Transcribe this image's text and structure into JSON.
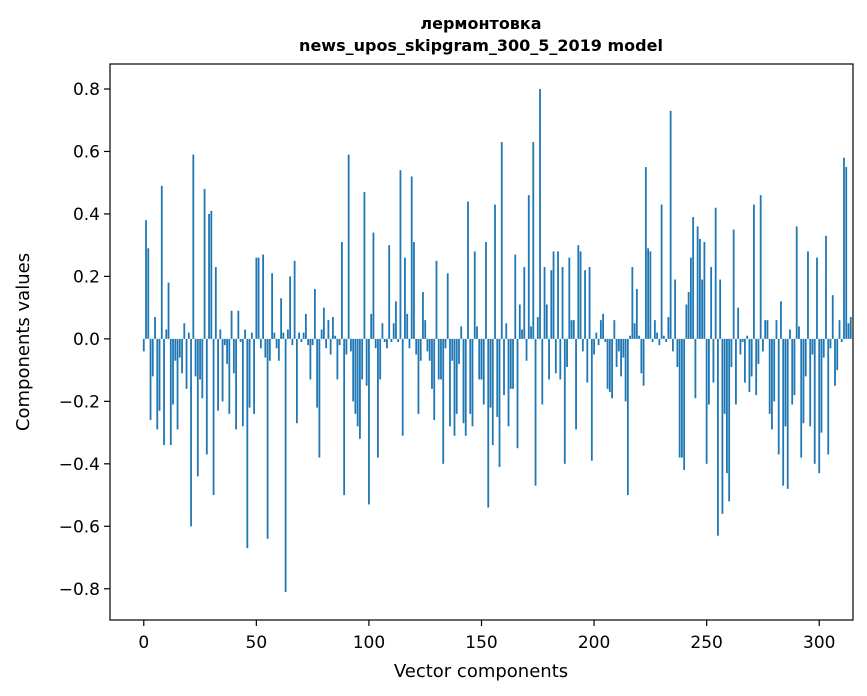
{
  "chart_data": {
    "type": "bar",
    "title": [
      "лермонтовка",
      "news_upos_skipgram_300_5_2019 model"
    ],
    "xlabel": "Vector components",
    "ylabel": "Components values",
    "xlim": [
      -15,
      315
    ],
    "ylim": [
      -0.9,
      0.88
    ],
    "x_ticks": [
      0,
      50,
      100,
      150,
      200,
      250,
      300
    ],
    "x_tick_labels": [
      "0",
      "50",
      "100",
      "150",
      "200",
      "250",
      "300"
    ],
    "y_ticks": [
      -0.8,
      -0.6,
      -0.4,
      -0.2,
      0.0,
      0.2,
      0.4,
      0.6,
      0.8
    ],
    "y_tick_labels": [
      "−0.8",
      "−0.6",
      "−0.4",
      "−0.2",
      "0.0",
      "0.2",
      "0.4",
      "0.6",
      "0.8"
    ],
    "bar_color": "#1f77b4",
    "grid": false,
    "series": [
      {
        "x_start": 0,
        "values": [
          -0.04,
          0.38,
          0.29,
          -0.26,
          -0.12,
          0.07,
          -0.29,
          -0.23,
          0.49,
          -0.34,
          0.03,
          0.18,
          -0.34,
          -0.21,
          -0.07,
          -0.29,
          -0.06,
          -0.11,
          0.05,
          -0.16,
          0.02,
          -0.6,
          0.59,
          -0.12,
          -0.44,
          -0.13,
          -0.19,
          0.48,
          -0.37,
          0.4,
          0.41,
          -0.5,
          0.23,
          -0.23,
          0.03,
          -0.2,
          -0.02,
          -0.08,
          -0.24,
          0.09,
          -0.11,
          -0.29,
          0.09,
          -0.01,
          -0.28,
          0.03,
          -0.67,
          -0.22,
          0.02,
          -0.24,
          0.26,
          0.26,
          -0.03,
          0.27,
          -0.06,
          -0.64,
          -0.07,
          0.21,
          0.02,
          -0.03,
          -0.07,
          0.13,
          0.02,
          -0.81,
          0.03,
          0.2,
          -0.02,
          0.25,
          -0.27,
          0.02,
          -0.01,
          0.02,
          0.08,
          -0.02,
          -0.13,
          -0.02,
          0.16,
          -0.22,
          -0.38,
          0.03,
          0.1,
          -0.03,
          0.06,
          -0.05,
          0.07,
          0.01,
          -0.13,
          -0.02,
          0.31,
          -0.5,
          -0.05,
          0.59,
          -0.04,
          -0.2,
          -0.24,
          -0.28,
          -0.32,
          -0.13,
          0.47,
          -0.15,
          -0.53,
          0.08,
          0.34,
          -0.03,
          -0.38,
          -0.13,
          0.05,
          -0.01,
          -0.03,
          0.3,
          -0.01,
          0.05,
          0.12,
          -0.01,
          0.54,
          -0.31,
          0.26,
          0.08,
          -0.03,
          0.52,
          0.31,
          -0.05,
          -0.24,
          -0.07,
          0.15,
          0.06,
          -0.04,
          -0.07,
          -0.16,
          -0.26,
          0.25,
          -0.13,
          -0.13,
          -0.4,
          -0.03,
          0.21,
          -0.28,
          -0.07,
          -0.31,
          -0.24,
          -0.08,
          0.04,
          -0.27,
          -0.31,
          0.44,
          -0.24,
          -0.28,
          0.28,
          0.04,
          -0.13,
          -0.13,
          -0.21,
          0.31,
          -0.54,
          -0.22,
          -0.34,
          0.43,
          -0.25,
          -0.41,
          0.63,
          -0.18,
          0.05,
          -0.28,
          -0.16,
          -0.16,
          0.27,
          -0.35,
          0.11,
          0.03,
          0.23,
          -0.07,
          0.46,
          0.04,
          0.63,
          -0.47,
          0.07,
          0.8,
          -0.21,
          0.23,
          0.11,
          -0.13,
          0.22,
          0.28,
          -0.11,
          0.28,
          -0.13,
          0.23,
          -0.4,
          -0.09,
          0.26,
          0.06,
          0.06,
          -0.29,
          0.3,
          0.28,
          -0.04,
          0.22,
          -0.14,
          0.23,
          -0.39,
          -0.05,
          0.02,
          -0.02,
          0.06,
          0.08,
          -0.01,
          -0.16,
          -0.17,
          -0.19,
          0.06,
          -0.09,
          -0.04,
          -0.12,
          -0.06,
          -0.2,
          -0.5,
          0.01,
          0.23,
          0.05,
          0.16,
          0.01,
          -0.11,
          -0.15,
          0.55,
          0.29,
          0.28,
          -0.01,
          0.06,
          0.02,
          -0.02,
          0.43,
          0.01,
          -0.01,
          0.07,
          0.73,
          -0.04,
          0.19,
          -0.09,
          -0.38,
          -0.38,
          -0.42,
          0.11,
          0.15,
          0.26,
          0.39,
          -0.19,
          0.36,
          0.32,
          0.19,
          0.31,
          -0.4,
          -0.21,
          0.23,
          -0.14,
          0.42,
          -0.63,
          0.19,
          -0.56,
          -0.24,
          -0.43,
          -0.52,
          -0.09,
          0.35,
          -0.21,
          0.1,
          -0.05,
          -0.01,
          -0.14,
          0.01,
          -0.17,
          -0.12,
          0.43,
          -0.18,
          -0.08,
          0.46,
          -0.04,
          0.06,
          0.06,
          -0.24,
          -0.29,
          -0.2,
          0.06,
          -0.37,
          0.12,
          -0.47,
          -0.28,
          -0.48,
          0.03,
          -0.21,
          -0.18,
          0.36,
          0.04,
          -0.38,
          -0.27,
          -0.12,
          0.28,
          -0.28,
          -0.05,
          -0.4,
          0.26,
          -0.43,
          -0.3,
          -0.06,
          0.33,
          -0.37,
          -0.03,
          0.14,
          -0.15,
          -0.1,
          0.06,
          -0.01,
          0.58,
          0.55,
          0.05,
          0.07
        ]
      }
    ]
  }
}
